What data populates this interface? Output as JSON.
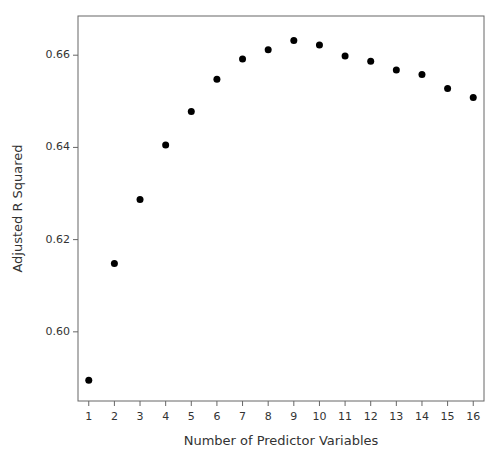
{
  "chart_data": {
    "type": "scatter",
    "xlabel": "Number of Predictor Variables",
    "ylabel": "Adjusted R Squared",
    "x": [
      1,
      2,
      3,
      4,
      5,
      6,
      7,
      8,
      9,
      10,
      11,
      12,
      13,
      14,
      15,
      16
    ],
    "values": [
      0.5895,
      0.6148,
      0.6287,
      0.6405,
      0.6478,
      0.6548,
      0.6592,
      0.6612,
      0.6632,
      0.6622,
      0.6598,
      0.6587,
      0.6568,
      0.6558,
      0.6528,
      0.6508
    ],
    "color": "#000000",
    "marker": "circle",
    "xlim": [
      0.58,
      16.42
    ],
    "ylim": [
      0.585,
      0.6685
    ],
    "xticks": [
      1,
      2,
      3,
      4,
      5,
      6,
      7,
      8,
      9,
      10,
      11,
      12,
      13,
      14,
      15,
      16
    ],
    "yticks": [
      {
        "value": 0.6,
        "label": "0.60"
      },
      0.62,
      0.64,
      0.66
    ],
    "grid": false
  }
}
